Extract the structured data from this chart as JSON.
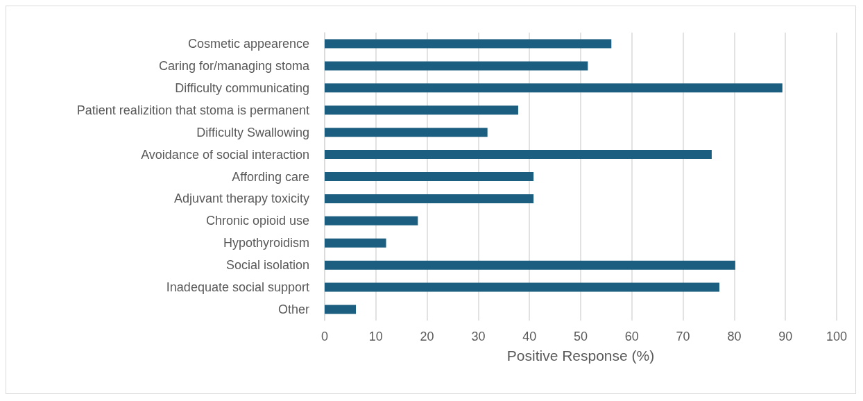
{
  "chart_data": {
    "type": "bar",
    "orientation": "horizontal",
    "xlabel": "Positive Response (%)",
    "categories": [
      "Cosmetic appearence",
      "Caring for/managing stoma",
      "Difficulty communicating",
      "Patient realizition that stoma is permanent",
      "Difficulty Swallowing",
      "Avoidance of social interaction",
      "Affording care",
      "Adjuvant therapy toxicity",
      "Chronic opioid use",
      "Hypothyroidism",
      "Social isolation",
      "Inadequate social support",
      "Other"
    ],
    "values": [
      56,
      51.4,
      89.4,
      37.8,
      31.8,
      75.6,
      40.8,
      40.8,
      18.2,
      12,
      80.2,
      77.1,
      6.1
    ],
    "color": "#1b5e80",
    "xlim": [
      0,
      100
    ],
    "xticks": [
      0,
      10,
      20,
      30,
      40,
      50,
      60,
      70,
      80,
      90,
      100
    ],
    "grid": "x"
  }
}
